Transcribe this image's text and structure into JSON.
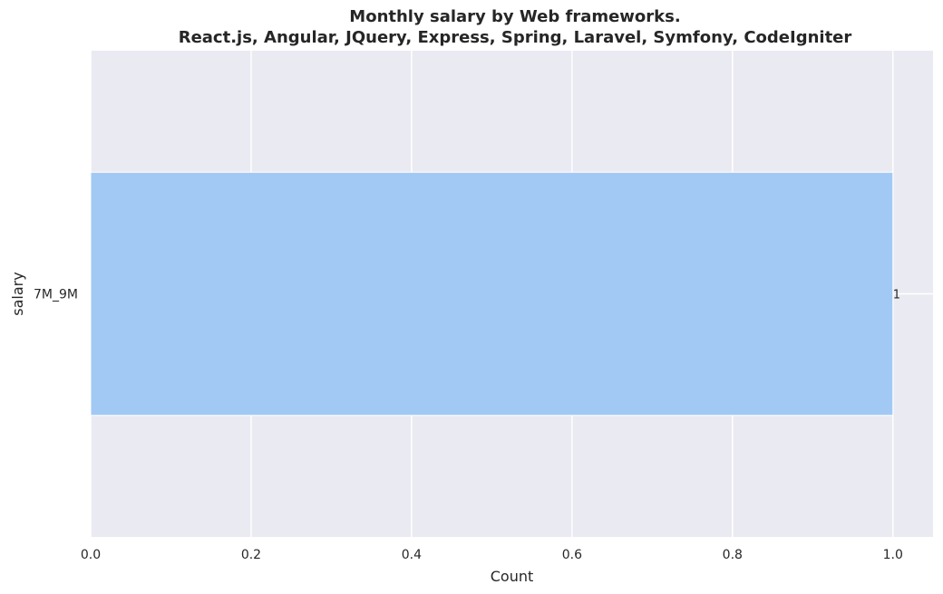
{
  "chart_data": {
    "type": "bar",
    "orientation": "horizontal",
    "title_line1": "Monthly salary by Web frameworks.",
    "title_line2": "React.js, Angular, JQuery, Express, Spring, Laravel, Symfony, CodeIgniter",
    "xlabel": "Count",
    "ylabel": "salary",
    "categories": [
      "7M_9M"
    ],
    "values": [
      1
    ],
    "data_labels": [
      "1"
    ],
    "xlim": [
      0,
      1.05
    ],
    "xticks": [
      0.0,
      0.2,
      0.4,
      0.6,
      0.8,
      1.0
    ],
    "xtick_labels": [
      "0.0",
      "0.2",
      "0.4",
      "0.6",
      "0.8",
      "1.0"
    ],
    "grid": true,
    "colors": {
      "bar": "#a1c9f4",
      "plot_background": "#eaeaf2",
      "grid": "#ffffff",
      "text": "#262626"
    }
  }
}
